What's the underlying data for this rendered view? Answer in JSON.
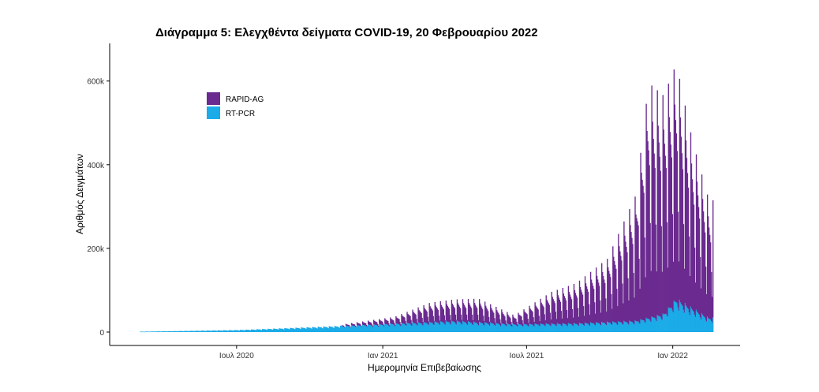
{
  "chart_data": {
    "type": "bar",
    "stacked": true,
    "title": "Διάγραμμα 5: Ελεγχθέντα δείγματα COVID-19, 20 Φεβρουαρίου 2022",
    "xlabel": "Ημερομηνία Επιβεβαίωσης",
    "ylabel": "Αριθμός Δειγμάτων",
    "x_range": [
      "2020-03-01",
      "2022-02-20"
    ],
    "ylim": [
      0,
      690000
    ],
    "y_ticks": [
      {
        "value": 0,
        "label": "0"
      },
      {
        "value": 200000,
        "label": "200k"
      },
      {
        "value": 400000,
        "label": "400k"
      },
      {
        "value": 600000,
        "label": "600k"
      }
    ],
    "x_ticks": [
      {
        "date": "2020-07-01",
        "label": "Ιουλ 2020"
      },
      {
        "date": "2021-01-01",
        "label": "Ιαν 2021"
      },
      {
        "date": "2021-07-01",
        "label": "Ιουλ 2021"
      },
      {
        "date": "2022-01-01",
        "label": "Ιαν 2022"
      }
    ],
    "grid": false,
    "legend_position": "top-left",
    "series": [
      {
        "name": "RAPID-AG",
        "color": "#6a2a8f",
        "approx_weekly_peak_points": [
          {
            "date": "2020-11-10",
            "value": 3000
          },
          {
            "date": "2021-01-15",
            "value": 15000
          },
          {
            "date": "2021-03-01",
            "value": 45000
          },
          {
            "date": "2021-05-01",
            "value": 55000
          },
          {
            "date": "2021-06-15",
            "value": 20000
          },
          {
            "date": "2021-08-01",
            "value": 75000
          },
          {
            "date": "2021-09-01",
            "value": 95000
          },
          {
            "date": "2021-10-10",
            "value": 150000
          },
          {
            "date": "2021-11-15",
            "value": 300000
          },
          {
            "date": "2021-12-01",
            "value": 560000
          },
          {
            "date": "2021-12-20",
            "value": 520000
          },
          {
            "date": "2022-01-05",
            "value": 560000
          },
          {
            "date": "2022-01-25",
            "value": 400000
          },
          {
            "date": "2022-02-15",
            "value": 280000
          }
        ]
      },
      {
        "name": "RT-PCR",
        "color": "#1aabe8",
        "approx_weekly_peak_points": [
          {
            "date": "2020-03-01",
            "value": 1000
          },
          {
            "date": "2020-07-01",
            "value": 5000
          },
          {
            "date": "2020-10-01",
            "value": 12000
          },
          {
            "date": "2021-01-01",
            "value": 20000
          },
          {
            "date": "2021-04-01",
            "value": 28000
          },
          {
            "date": "2021-06-15",
            "value": 20000
          },
          {
            "date": "2021-09-01",
            "value": 22000
          },
          {
            "date": "2021-11-15",
            "value": 28000
          },
          {
            "date": "2021-12-20",
            "value": 45000
          },
          {
            "date": "2022-01-05",
            "value": 82000
          },
          {
            "date": "2022-02-15",
            "value": 35000
          }
        ]
      }
    ]
  }
}
